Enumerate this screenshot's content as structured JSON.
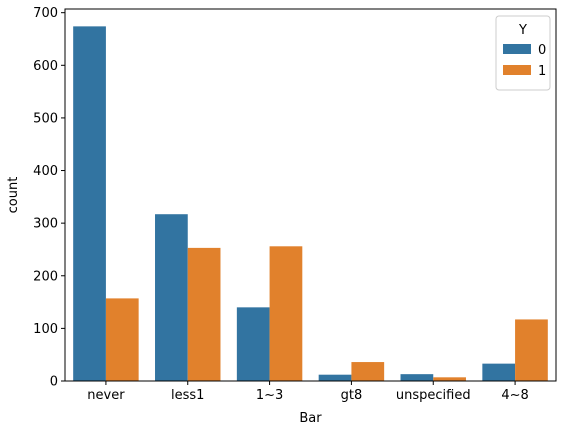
{
  "chart_data": {
    "type": "bar",
    "categories": [
      "never",
      "less1",
      "1~3",
      "gt8",
      "unspecified",
      "4~8"
    ],
    "series": [
      {
        "name": "0",
        "values": [
          674,
          317,
          140,
          12,
          13,
          33
        ],
        "color": "#3274a1"
      },
      {
        "name": "1",
        "values": [
          157,
          253,
          256,
          36,
          7,
          117
        ],
        "color": "#e1812c"
      }
    ],
    "xlabel": "Bar",
    "ylabel": "count",
    "ylim": [
      0,
      707
    ],
    "yticks": [
      "0",
      "100",
      "200",
      "300",
      "400",
      "500",
      "600",
      "700"
    ],
    "legend": {
      "title": "Y",
      "placement": "top-right"
    },
    "grid": false
  }
}
